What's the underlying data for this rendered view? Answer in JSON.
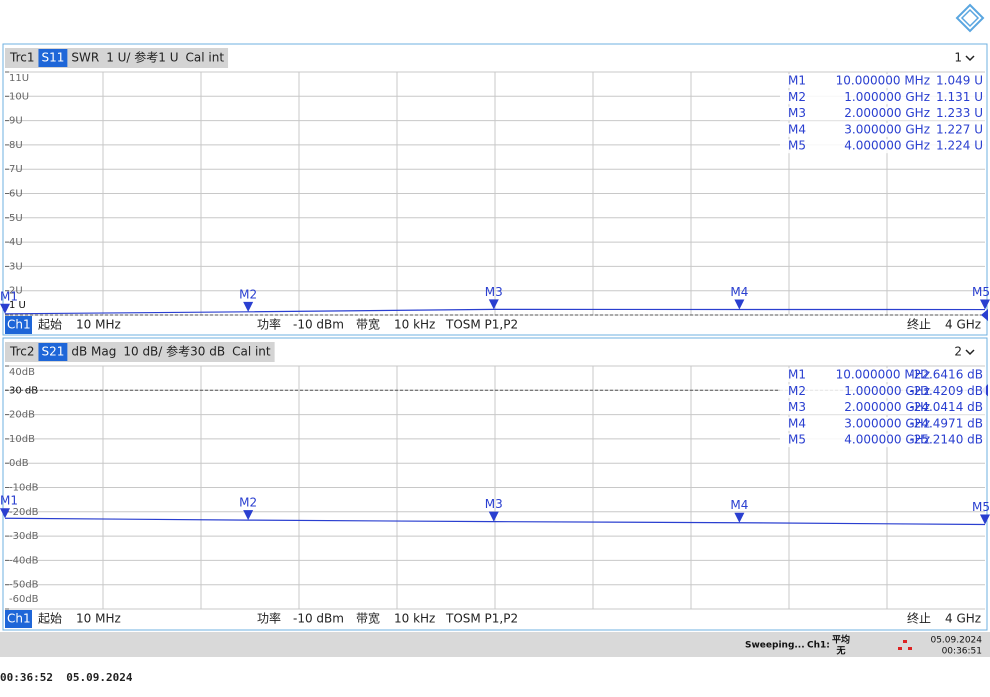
{
  "chart_data": [
    {
      "type": "line",
      "header": {
        "trace": "Trc1",
        "format": "SWR",
        "scale": "1 U/ 参考1 U",
        "cal": "Cal int",
        "window": "1"
      },
      "xlim": [
        0.01,
        4
      ],
      "ylim": [
        1,
        11
      ],
      "reference": 1,
      "yticks": [
        {
          "value": 11,
          "label": "11U"
        },
        {
          "value": 10,
          "label": "10U"
        },
        {
          "value": 9,
          "label": "9U"
        },
        {
          "value": 8,
          "label": "8U"
        },
        {
          "value": 7,
          "label": "7U"
        },
        {
          "value": 6,
          "label": "6U"
        },
        {
          "value": 5,
          "label": "5U"
        },
        {
          "value": 4,
          "label": "4U"
        },
        {
          "value": 3,
          "label": "3U"
        },
        {
          "value": 2,
          "label": "2U"
        },
        {
          "value": 1,
          "label": "1 U"
        }
      ],
      "series": [
        {
          "name": "S11",
          "color": "#2a3fd0",
          "x": [
            0.01,
            1,
            2,
            3,
            4
          ],
          "values": [
            1.049,
            1.131,
            1.233,
            1.227,
            1.224
          ],
          "marker_names": [
            "M1",
            "M2",
            "M3",
            "M4",
            "M5"
          ],
          "stimulus_labels": [
            "10.000000 MHz",
            "1.000000 GHz",
            "2.000000 GHz",
            "3.000000 GHz",
            "4.000000 GHz"
          ],
          "value_labels": [
            "1.049 U",
            "1.131 U",
            "1.233 U",
            "1.227 U",
            "1.224 U"
          ]
        }
      ],
      "footer": {
        "channel": "Ch1",
        "start_label": "起始",
        "start": "10 MHz",
        "power_label": "功率",
        "power": "-10 dBm",
        "bw_label": "带宽",
        "bw": "10 kHz",
        "cal": "TOSM P1,P2",
        "stop_label": "终止",
        "stop": "4 GHz"
      }
    },
    {
      "type": "line",
      "header": {
        "trace": "Trc2",
        "format": "dB Mag",
        "scale": "10 dB/ 参考30 dB",
        "cal": "Cal int",
        "window": "2"
      },
      "xlim": [
        0.01,
        4
      ],
      "ylim": [
        -60,
        40
      ],
      "reference": 30,
      "yticks": [
        {
          "value": 40,
          "label": "40dB"
        },
        {
          "value": 30,
          "label": "30 dB"
        },
        {
          "value": 20,
          "label": "20dB"
        },
        {
          "value": 10,
          "label": "10dB"
        },
        {
          "value": 0,
          "label": "0dB"
        },
        {
          "value": -10,
          "label": "-10dB"
        },
        {
          "value": -20,
          "label": "-20dB"
        },
        {
          "value": -30,
          "label": "-30dB"
        },
        {
          "value": -40,
          "label": "-40dB"
        },
        {
          "value": -50,
          "label": "-50dB"
        },
        {
          "value": -60,
          "label": "-60dB"
        }
      ],
      "series": [
        {
          "name": "S21",
          "color": "#2a3fd0",
          "x": [
            0.01,
            1,
            2,
            3,
            4
          ],
          "values": [
            -22.6416,
            -23.4209,
            -24.0414,
            -24.4971,
            -25.214
          ],
          "marker_names": [
            "M1",
            "M2",
            "M3",
            "M4",
            "M5"
          ],
          "stimulus_labels": [
            "10.000000 MHz",
            "1.000000 GHz",
            "2.000000 GHz",
            "3.000000 GHz",
            "4.000000 GHz"
          ],
          "value_labels": [
            "-22.6416 dB",
            "-23.4209 dB",
            "-24.0414 dB",
            "-24.4971 dB",
            "-25.2140 dB"
          ]
        }
      ],
      "footer": {
        "channel": "Ch1",
        "start_label": "起始",
        "start": "10 MHz",
        "power_label": "功率",
        "power": "-10 dBm",
        "bw_label": "带宽",
        "bw": "10 kHz",
        "cal": "TOSM P1,P2",
        "stop_label": "终止",
        "stop": "4 GHz"
      }
    }
  ],
  "status": {
    "sweep": "Sweeping...",
    "channel": "Ch1:",
    "average": "平均",
    "average_state": "无",
    "date": "05.09.2024",
    "time": "00:36:51"
  },
  "timestamp": "00:36:52  05.09.2024"
}
